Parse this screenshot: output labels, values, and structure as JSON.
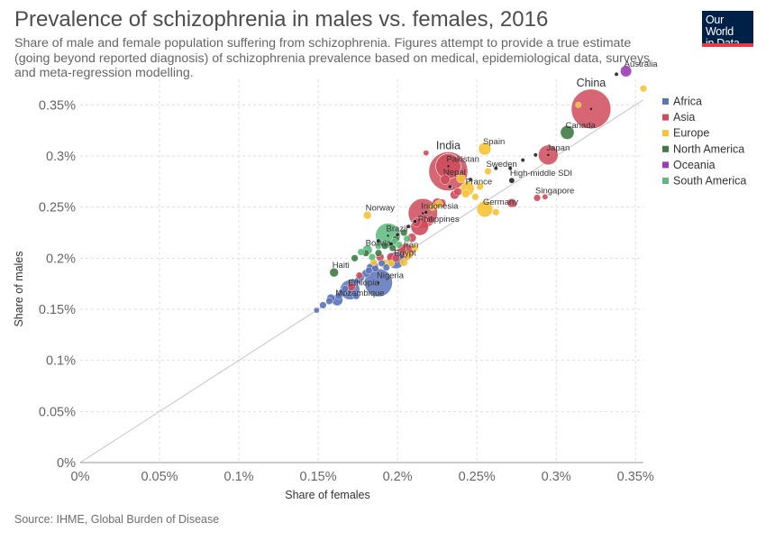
{
  "header": {
    "title": "Prevalence of schizophrenia in males vs. females, 2016",
    "subtitle": "Share of male and female population suffering from schizophrenia. Figures attempt to provide a true estimate (going beyond reported diagnosis) of schizophrenia prevalence based on medical, epidemiological data, surveys and meta-regression modelling.",
    "logo_line1": "Our World",
    "logo_line2": "in Data"
  },
  "footer": {
    "source": "Source: IHME, Global Burden of Disease"
  },
  "colors": {
    "Africa": "#5a74b8",
    "Asia": "#cf4b5b",
    "Europe": "#f5c335",
    "North America": "#3f7b45",
    "Oceania": "#9b3bb5",
    "South America": "#5db97c",
    "World": "#222222",
    "grid": "#dddddd",
    "reference_line": "#c6c6c6"
  },
  "chart_data": {
    "type": "scatter",
    "title": "Prevalence of schizophrenia in males vs. females, 2016",
    "xlabel": "Share of females",
    "ylabel": "Share of males",
    "xlim": [
      0,
      0.355
    ],
    "ylim": [
      0,
      0.375
    ],
    "x_ticks": [
      "0%",
      "0.05%",
      "0.1%",
      "0.15%",
      "0.2%",
      "0.25%",
      "0.3%",
      "0.35%"
    ],
    "y_ticks": [
      "0%",
      "0.05%",
      "0.1%",
      "0.15%",
      "0.2%",
      "0.25%",
      "0.3%",
      "0.35%"
    ],
    "x_tick_values": [
      0,
      0.05,
      0.1,
      0.15,
      0.2,
      0.25,
      0.3,
      0.35
    ],
    "y_tick_values": [
      0,
      0.05,
      0.1,
      0.15,
      0.2,
      0.25,
      0.3,
      0.35
    ],
    "grid": true,
    "legend_position": "right",
    "legend": [
      "Africa",
      "Asia",
      "Europe",
      "North America",
      "Oceania",
      "South America"
    ],
    "reference_line": "y = x",
    "points": [
      {
        "label": "China",
        "x": 0.322,
        "y": 0.346,
        "region": "Asia",
        "size": 100,
        "big": true
      },
      {
        "label": "India",
        "x": 0.232,
        "y": 0.285,
        "region": "Asia",
        "size": 97,
        "big": true
      },
      {
        "label": "Australia",
        "x": 0.344,
        "y": 0.383,
        "region": "Oceania",
        "size": 8
      },
      {
        "label": "Canada",
        "x": 0.307,
        "y": 0.323,
        "region": "North America",
        "size": 12
      },
      {
        "label": "Japan",
        "x": 0.295,
        "y": 0.301,
        "region": "Asia",
        "size": 25
      },
      {
        "label": "Spain",
        "x": 0.255,
        "y": 0.307,
        "region": "Europe",
        "size": 10
      },
      {
        "label": "Sweden",
        "x": 0.257,
        "y": 0.285,
        "region": "Europe",
        "size": 3
      },
      {
        "label": "High-middle SDI",
        "x": 0.272,
        "y": 0.276,
        "region": "World",
        "size": 2
      },
      {
        "label": "Pakistan",
        "x": 0.232,
        "y": 0.29,
        "region": "Asia",
        "size": 40
      },
      {
        "label": "Nepal",
        "x": 0.23,
        "y": 0.277,
        "region": "Asia",
        "size": 6
      },
      {
        "label": "France",
        "x": 0.244,
        "y": 0.268,
        "region": "Europe",
        "size": 12
      },
      {
        "label": "Singapore",
        "x": 0.288,
        "y": 0.259,
        "region": "Asia",
        "size": 3
      },
      {
        "label": "Germany",
        "x": 0.255,
        "y": 0.248,
        "region": "Europe",
        "size": 16
      },
      {
        "label": "Indonesia",
        "x": 0.216,
        "y": 0.244,
        "region": "Asia",
        "size": 55
      },
      {
        "label": "Philippines",
        "x": 0.214,
        "y": 0.231,
        "region": "Asia",
        "size": 20
      },
      {
        "label": "Norway",
        "x": 0.181,
        "y": 0.242,
        "region": "Europe",
        "size": 4
      },
      {
        "label": "Brazil",
        "x": 0.194,
        "y": 0.222,
        "region": "South America",
        "size": 40
      },
      {
        "label": "Bolivia",
        "x": 0.181,
        "y": 0.208,
        "region": "South America",
        "size": 6
      },
      {
        "label": "Iran",
        "x": 0.205,
        "y": 0.206,
        "region": "Asia",
        "size": 18
      },
      {
        "label": "Egypt",
        "x": 0.199,
        "y": 0.198,
        "region": "Africa",
        "size": 18
      },
      {
        "label": "Nigeria",
        "x": 0.188,
        "y": 0.176,
        "region": "Africa",
        "size": 50
      },
      {
        "label": "Haiti",
        "x": 0.16,
        "y": 0.186,
        "region": "North America",
        "size": 5
      },
      {
        "label": "Ethiopia",
        "x": 0.17,
        "y": 0.169,
        "region": "Africa",
        "size": 25
      },
      {
        "label": "Mozambique",
        "x": 0.162,
        "y": 0.159,
        "region": "Africa",
        "size": 8
      }
    ],
    "unlabeled_points": [
      {
        "x": 0.149,
        "y": 0.149,
        "region": "Africa",
        "size": 2
      },
      {
        "x": 0.153,
        "y": 0.154,
        "region": "Africa",
        "size": 3
      },
      {
        "x": 0.157,
        "y": 0.158,
        "region": "Africa",
        "size": 3
      },
      {
        "x": 0.158,
        "y": 0.161,
        "region": "Africa",
        "size": 4
      },
      {
        "x": 0.163,
        "y": 0.163,
        "region": "Africa",
        "size": 3
      },
      {
        "x": 0.165,
        "y": 0.166,
        "region": "Africa",
        "size": 4
      },
      {
        "x": 0.167,
        "y": 0.17,
        "region": "Africa",
        "size": 3
      },
      {
        "x": 0.172,
        "y": 0.176,
        "region": "Africa",
        "size": 4
      },
      {
        "x": 0.175,
        "y": 0.178,
        "region": "Africa",
        "size": 3
      },
      {
        "x": 0.177,
        "y": 0.181,
        "region": "Africa",
        "size": 3
      },
      {
        "x": 0.18,
        "y": 0.185,
        "region": "Africa",
        "size": 4
      },
      {
        "x": 0.182,
        "y": 0.188,
        "region": "Africa",
        "size": 3
      },
      {
        "x": 0.183,
        "y": 0.191,
        "region": "Africa",
        "size": 4
      },
      {
        "x": 0.186,
        "y": 0.19,
        "region": "Africa",
        "size": 3
      },
      {
        "x": 0.19,
        "y": 0.195,
        "region": "Africa",
        "size": 3
      },
      {
        "x": 0.193,
        "y": 0.191,
        "region": "Africa",
        "size": 3
      },
      {
        "x": 0.174,
        "y": 0.163,
        "region": "Africa",
        "size": 3
      },
      {
        "x": 0.171,
        "y": 0.172,
        "region": "Asia",
        "size": 4
      },
      {
        "x": 0.176,
        "y": 0.183,
        "region": "Asia",
        "size": 3
      },
      {
        "x": 0.185,
        "y": 0.193,
        "region": "Asia",
        "size": 5
      },
      {
        "x": 0.189,
        "y": 0.201,
        "region": "Asia",
        "size": 4
      },
      {
        "x": 0.196,
        "y": 0.201,
        "region": "Asia",
        "size": 5
      },
      {
        "x": 0.199,
        "y": 0.2,
        "region": "Asia",
        "size": 4
      },
      {
        "x": 0.203,
        "y": 0.21,
        "region": "Asia",
        "size": 4
      },
      {
        "x": 0.209,
        "y": 0.22,
        "region": "Asia",
        "size": 5
      },
      {
        "x": 0.212,
        "y": 0.235,
        "region": "Asia",
        "size": 5
      },
      {
        "x": 0.221,
        "y": 0.238,
        "region": "Asia",
        "size": 4
      },
      {
        "x": 0.225,
        "y": 0.254,
        "region": "Asia",
        "size": 6
      },
      {
        "x": 0.228,
        "y": 0.254,
        "region": "Asia",
        "size": 4
      },
      {
        "x": 0.236,
        "y": 0.262,
        "region": "Asia",
        "size": 5
      },
      {
        "x": 0.238,
        "y": 0.265,
        "region": "Asia",
        "size": 4
      },
      {
        "x": 0.218,
        "y": 0.303,
        "region": "Asia",
        "size": 2
      },
      {
        "x": 0.272,
        "y": 0.254,
        "region": "Asia",
        "size": 5
      },
      {
        "x": 0.293,
        "y": 0.26,
        "region": "Asia",
        "size": 2
      },
      {
        "x": 0.185,
        "y": 0.196,
        "region": "Europe",
        "size": 3
      },
      {
        "x": 0.192,
        "y": 0.195,
        "region": "Europe",
        "size": 4
      },
      {
        "x": 0.196,
        "y": 0.195,
        "region": "Europe",
        "size": 3
      },
      {
        "x": 0.204,
        "y": 0.196,
        "region": "Europe",
        "size": 4
      },
      {
        "x": 0.207,
        "y": 0.203,
        "region": "Europe",
        "size": 4
      },
      {
        "x": 0.211,
        "y": 0.21,
        "region": "Europe",
        "size": 3
      },
      {
        "x": 0.222,
        "y": 0.25,
        "region": "Europe",
        "size": 3
      },
      {
        "x": 0.226,
        "y": 0.253,
        "region": "Europe",
        "size": 4
      },
      {
        "x": 0.24,
        "y": 0.278,
        "region": "Europe",
        "size": 5
      },
      {
        "x": 0.243,
        "y": 0.263,
        "region": "Europe",
        "size": 4
      },
      {
        "x": 0.249,
        "y": 0.26,
        "region": "Europe",
        "size": 3
      },
      {
        "x": 0.252,
        "y": 0.27,
        "region": "Europe",
        "size": 3
      },
      {
        "x": 0.262,
        "y": 0.245,
        "region": "Europe",
        "size": 3
      },
      {
        "x": 0.314,
        "y": 0.35,
        "region": "Europe",
        "size": 2
      },
      {
        "x": 0.355,
        "y": 0.366,
        "region": "Europe",
        "size": 3
      },
      {
        "x": 0.173,
        "y": 0.2,
        "region": "North America",
        "size": 3
      },
      {
        "x": 0.18,
        "y": 0.205,
        "region": "North America",
        "size": 3
      },
      {
        "x": 0.188,
        "y": 0.205,
        "region": "North America",
        "size": 3
      },
      {
        "x": 0.192,
        "y": 0.212,
        "region": "North America",
        "size": 3
      },
      {
        "x": 0.197,
        "y": 0.21,
        "region": "North America",
        "size": 3
      },
      {
        "x": 0.199,
        "y": 0.219,
        "region": "North America",
        "size": 3
      },
      {
        "x": 0.204,
        "y": 0.225,
        "region": "North America",
        "size": 3
      },
      {
        "x": 0.177,
        "y": 0.206,
        "region": "South America",
        "size": 3
      },
      {
        "x": 0.184,
        "y": 0.201,
        "region": "South America",
        "size": 3
      },
      {
        "x": 0.188,
        "y": 0.212,
        "region": "South America",
        "size": 3
      },
      {
        "x": 0.198,
        "y": 0.216,
        "region": "South America",
        "size": 3
      },
      {
        "x": 0.201,
        "y": 0.213,
        "region": "South America",
        "size": 3
      },
      {
        "x": 0.206,
        "y": 0.219,
        "region": "South America",
        "size": 3
      },
      {
        "x": 0.188,
        "y": 0.217,
        "region": "World",
        "size": 1
      },
      {
        "x": 0.196,
        "y": 0.214,
        "region": "World",
        "size": 1
      },
      {
        "x": 0.2,
        "y": 0.223,
        "region": "World",
        "size": 1
      },
      {
        "x": 0.207,
        "y": 0.231,
        "region": "World",
        "size": 1
      },
      {
        "x": 0.211,
        "y": 0.236,
        "region": "World",
        "size": 1
      },
      {
        "x": 0.218,
        "y": 0.245,
        "region": "World",
        "size": 1
      },
      {
        "x": 0.233,
        "y": 0.27,
        "region": "World",
        "size": 1
      },
      {
        "x": 0.246,
        "y": 0.277,
        "region": "World",
        "size": 1
      },
      {
        "x": 0.262,
        "y": 0.288,
        "region": "World",
        "size": 1
      },
      {
        "x": 0.271,
        "y": 0.288,
        "region": "World",
        "size": 1
      },
      {
        "x": 0.279,
        "y": 0.296,
        "region": "World",
        "size": 1
      },
      {
        "x": 0.287,
        "y": 0.301,
        "region": "World",
        "size": 1
      },
      {
        "x": 0.338,
        "y": 0.38,
        "region": "World",
        "size": 1
      }
    ]
  }
}
